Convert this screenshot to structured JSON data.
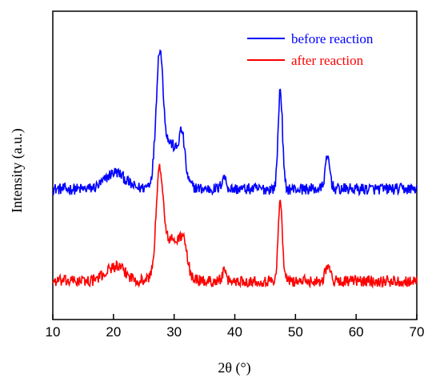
{
  "chart_data": {
    "type": "line",
    "xlabel": "2θ (°)",
    "ylabel": "Intensity (a.u.)",
    "xlim": [
      10,
      70
    ],
    "x_ticks": [
      10,
      20,
      30,
      40,
      50,
      60,
      70
    ],
    "y_ticks_shown": false,
    "grid": false,
    "legend_position": "top-right",
    "x_start": 10.0,
    "x_step": 0.1,
    "series": [
      {
        "name": "before reaction",
        "color": "#0000ff",
        "offset": 1.0,
        "peaks": [
          [
            20.3,
            0.08,
            1.6
          ],
          [
            27.6,
            0.55,
            0.55
          ],
          [
            29.3,
            0.22,
            1.6
          ],
          [
            31.3,
            0.18,
            0.45
          ],
          [
            38.2,
            0.06,
            0.35
          ],
          [
            47.5,
            0.48,
            0.35
          ],
          [
            55.3,
            0.15,
            0.4
          ]
        ]
      },
      {
        "name": "after reaction",
        "color": "#ff0000",
        "offset": 0.0,
        "peaks": [
          [
            20.3,
            0.07,
            1.6
          ],
          [
            27.6,
            0.45,
            0.55
          ],
          [
            29.5,
            0.2,
            1.6
          ],
          [
            31.5,
            0.12,
            0.6
          ],
          [
            38.2,
            0.04,
            0.35
          ],
          [
            47.5,
            0.38,
            0.35
          ],
          [
            55.3,
            0.08,
            0.4
          ]
        ]
      }
    ]
  }
}
